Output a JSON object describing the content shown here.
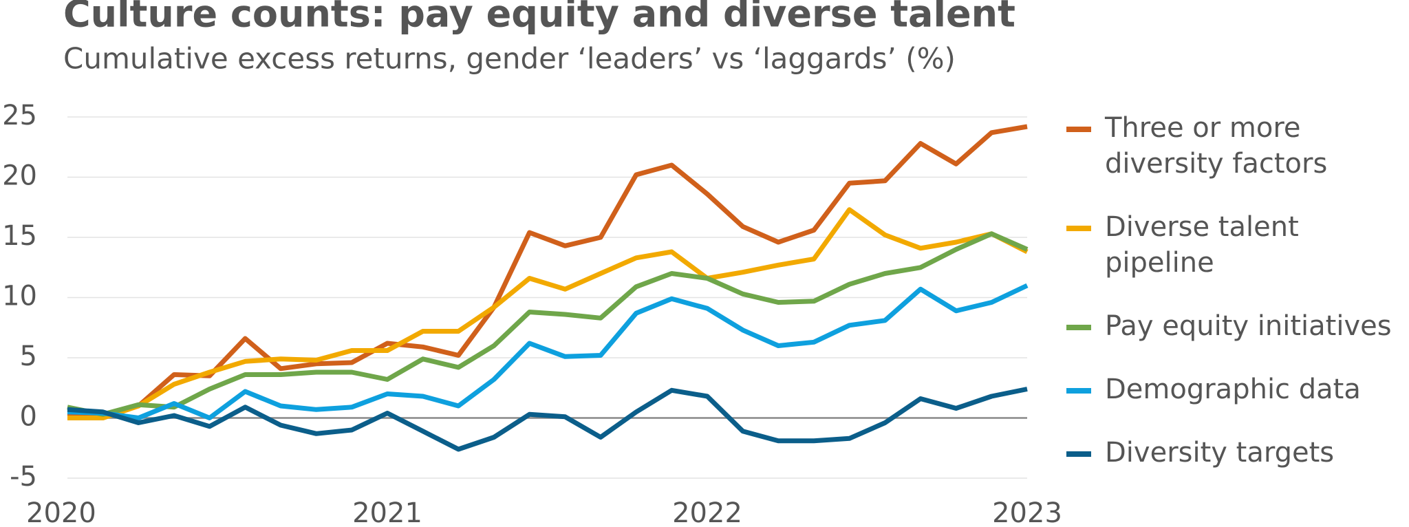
{
  "chart_data": {
    "type": "line",
    "title": "Culture counts: pay equity and diverse talent",
    "subtitle": "Cumulative excess returns, gender ‘leaders’ vs ‘laggards’ (%)",
    "x": [
      2020,
      2020.1111,
      2020.2222,
      2020.3333,
      2020.4444,
      2020.5556,
      2020.6667,
      2020.7778,
      2020.8889,
      2021,
      2021.1111,
      2021.2222,
      2021.3333,
      2021.4444,
      2021.5556,
      2021.6667,
      2021.7778,
      2021.8889,
      2022,
      2022.1111,
      2022.2222,
      2022.3333,
      2022.4444,
      2022.5556,
      2022.6667,
      2022.7778,
      2022.8889,
      2023
    ],
    "xlim": [
      2020,
      2023
    ],
    "xticks": [
      2020,
      2021,
      2022,
      2023
    ],
    "ylim": [
      -5,
      25
    ],
    "yticks": [
      -5,
      0,
      5,
      10,
      15,
      20,
      25
    ],
    "grid": true,
    "legend": "right",
    "series": [
      {
        "name": "Three or more diversity factors",
        "color": "#d0601b",
        "values": [
          0.4,
          0.3,
          1.0,
          3.6,
          3.5,
          6.6,
          4.1,
          4.5,
          4.6,
          6.2,
          5.9,
          5.2,
          9.2,
          15.4,
          14.3,
          15.0,
          20.2,
          21.0,
          18.6,
          15.9,
          14.6,
          15.6,
          19.5,
          19.7,
          22.8,
          21.1,
          23.7,
          24.2
        ]
      },
      {
        "name": "Diverse talent pipeline",
        "color": "#f2a900",
        "values": [
          0.0,
          0.0,
          1.0,
          2.8,
          3.8,
          4.7,
          4.9,
          4.8,
          5.6,
          5.6,
          7.2,
          7.2,
          9.2,
          11.6,
          10.7,
          12.0,
          13.3,
          13.8,
          11.6,
          12.1,
          12.7,
          13.2,
          17.3,
          15.2,
          14.1,
          14.6,
          15.3,
          13.8
        ]
      },
      {
        "name": "Pay equity initiatives",
        "color": "#6fa64a",
        "values": [
          0.9,
          0.3,
          1.1,
          0.9,
          2.4,
          3.6,
          3.6,
          3.8,
          3.8,
          3.2,
          4.9,
          4.2,
          6.0,
          8.8,
          8.6,
          8.3,
          10.9,
          12.0,
          11.6,
          10.3,
          9.6,
          9.7,
          11.1,
          12.0,
          12.5,
          14.0,
          15.3,
          14.0
        ]
      },
      {
        "name": "Demographic data",
        "color": "#0ea0de",
        "values": [
          0.5,
          0.4,
          0.0,
          1.2,
          0.0,
          2.2,
          1.0,
          0.7,
          0.9,
          2.0,
          1.8,
          1.0,
          3.2,
          6.2,
          5.1,
          5.2,
          8.7,
          9.9,
          9.1,
          7.3,
          6.0,
          6.3,
          7.7,
          8.1,
          10.7,
          8.9,
          9.6,
          11.0
        ]
      },
      {
        "name": "Diversity targets",
        "color": "#0b5e8a",
        "values": [
          0.7,
          0.5,
          -0.4,
          0.2,
          -0.7,
          0.9,
          -0.6,
          -1.3,
          -1.0,
          0.4,
          -1.1,
          -2.6,
          -1.6,
          0.3,
          0.1,
          -1.6,
          0.5,
          2.3,
          1.8,
          -1.1,
          -1.9,
          -1.9,
          -1.7,
          -0.4,
          1.6,
          0.8,
          1.8,
          2.4
        ]
      }
    ]
  }
}
